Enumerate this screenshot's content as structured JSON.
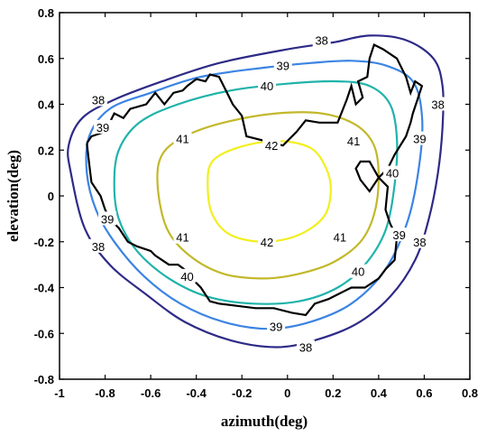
{
  "chart_data": {
    "type": "contour",
    "title": "",
    "xlabel": "azimuth(deg)",
    "ylabel": "elevation(deg)",
    "xlim": [
      -1,
      0.8
    ],
    "ylim": [
      -0.8,
      0.8
    ],
    "xticks": [
      "-1",
      "-0.8",
      "-0.6",
      "-0.4",
      "-0.2",
      "0",
      "0.2",
      "0.4",
      "0.6",
      "0.8"
    ],
    "yticks": [
      "0.8",
      "0.6",
      "0.4",
      "0.2",
      "0",
      "-0.2",
      "-0.4",
      "-0.6",
      "-0.8"
    ],
    "grid": false,
    "contours": [
      {
        "level": "38",
        "color": "#2e2a87",
        "points": [
          [
            -0.95,
            0.1
          ],
          [
            -0.96,
            0.22
          ],
          [
            -0.9,
            0.34
          ],
          [
            -0.76,
            0.42
          ],
          [
            -0.55,
            0.5
          ],
          [
            -0.3,
            0.58
          ],
          [
            0.0,
            0.64
          ],
          [
            0.2,
            0.67
          ],
          [
            0.36,
            0.7
          ],
          [
            0.52,
            0.68
          ],
          [
            0.64,
            0.6
          ],
          [
            0.68,
            0.48
          ],
          [
            0.68,
            0.3
          ],
          [
            0.66,
            0.1
          ],
          [
            0.62,
            -0.1
          ],
          [
            0.56,
            -0.28
          ],
          [
            0.45,
            -0.44
          ],
          [
            0.3,
            -0.56
          ],
          [
            0.12,
            -0.63
          ],
          [
            -0.05,
            -0.66
          ],
          [
            -0.25,
            -0.63
          ],
          [
            -0.45,
            -0.55
          ],
          [
            -0.62,
            -0.43
          ],
          [
            -0.78,
            -0.3
          ],
          [
            -0.89,
            -0.14
          ],
          [
            -0.95,
            0.1
          ]
        ],
        "labels": [
          {
            "x": 0.15,
            "y": 0.68
          },
          {
            "x": 0.66,
            "y": 0.4
          },
          {
            "x": 0.58,
            "y": -0.2
          },
          {
            "x": 0.08,
            "y": -0.66
          },
          {
            "x": -0.83,
            "y": -0.22
          },
          {
            "x": -0.83,
            "y": 0.42
          }
        ]
      },
      {
        "level": "39",
        "color": "#3b84e3",
        "points": [
          [
            -0.88,
            0.1
          ],
          [
            -0.87,
            0.26
          ],
          [
            -0.78,
            0.38
          ],
          [
            -0.6,
            0.45
          ],
          [
            -0.38,
            0.52
          ],
          [
            -0.1,
            0.56
          ],
          [
            0.1,
            0.58
          ],
          [
            0.28,
            0.59
          ],
          [
            0.43,
            0.57
          ],
          [
            0.55,
            0.5
          ],
          [
            0.59,
            0.35
          ],
          [
            0.58,
            0.15
          ],
          [
            0.53,
            -0.1
          ],
          [
            0.43,
            -0.32
          ],
          [
            0.28,
            -0.47
          ],
          [
            0.1,
            -0.55
          ],
          [
            -0.08,
            -0.58
          ],
          [
            -0.28,
            -0.55
          ],
          [
            -0.47,
            -0.47
          ],
          [
            -0.63,
            -0.35
          ],
          [
            -0.76,
            -0.2
          ],
          [
            -0.84,
            -0.06
          ],
          [
            -0.88,
            0.1
          ]
        ],
        "labels": [
          {
            "x": -0.02,
            "y": 0.57
          },
          {
            "x": 0.58,
            "y": 0.25
          },
          {
            "x": 0.49,
            "y": -0.17
          },
          {
            "x": -0.05,
            "y": -0.57
          },
          {
            "x": -0.79,
            "y": -0.1
          },
          {
            "x": -0.81,
            "y": 0.3
          }
        ]
      },
      {
        "level": "40",
        "color": "#20b3aa",
        "points": [
          [
            -0.76,
            0.05
          ],
          [
            -0.74,
            0.2
          ],
          [
            -0.65,
            0.32
          ],
          [
            -0.48,
            0.4
          ],
          [
            -0.25,
            0.46
          ],
          [
            0.0,
            0.49
          ],
          [
            0.22,
            0.5
          ],
          [
            0.36,
            0.48
          ],
          [
            0.45,
            0.4
          ],
          [
            0.48,
            0.25
          ],
          [
            0.47,
            0.05
          ],
          [
            0.43,
            -0.15
          ],
          [
            0.34,
            -0.3
          ],
          [
            0.22,
            -0.4
          ],
          [
            0.05,
            -0.46
          ],
          [
            -0.15,
            -0.47
          ],
          [
            -0.35,
            -0.44
          ],
          [
            -0.52,
            -0.36
          ],
          [
            -0.66,
            -0.24
          ],
          [
            -0.74,
            -0.1
          ],
          [
            -0.76,
            0.05
          ]
        ],
        "labels": [
          {
            "x": -0.09,
            "y": 0.48
          },
          {
            "x": 0.46,
            "y": 0.1
          },
          {
            "x": 0.31,
            "y": -0.33
          },
          {
            "x": -0.44,
            "y": -0.35
          }
        ]
      },
      {
        "level": "41",
        "color": "#c2b82a",
        "points": [
          [
            -0.57,
            0.05
          ],
          [
            -0.55,
            0.18
          ],
          [
            -0.45,
            0.26
          ],
          [
            -0.28,
            0.32
          ],
          [
            -0.05,
            0.36
          ],
          [
            0.15,
            0.36
          ],
          [
            0.3,
            0.31
          ],
          [
            0.38,
            0.22
          ],
          [
            0.4,
            0.08
          ],
          [
            0.38,
            -0.08
          ],
          [
            0.32,
            -0.2
          ],
          [
            0.2,
            -0.29
          ],
          [
            0.05,
            -0.34
          ],
          [
            -0.1,
            -0.36
          ],
          [
            -0.28,
            -0.34
          ],
          [
            -0.43,
            -0.26
          ],
          [
            -0.53,
            -0.14
          ],
          [
            -0.57,
            0.05
          ]
        ],
        "labels": [
          {
            "x": -0.46,
            "y": 0.25
          },
          {
            "x": 0.29,
            "y": 0.24
          },
          {
            "x": 0.23,
            "y": -0.18
          },
          {
            "x": -0.46,
            "y": -0.18
          }
        ]
      },
      {
        "level": "42",
        "color": "#f2ef1f",
        "points": [
          [
            -0.35,
            0.05
          ],
          [
            -0.33,
            0.15
          ],
          [
            -0.22,
            0.21
          ],
          [
            -0.05,
            0.24
          ],
          [
            0.1,
            0.21
          ],
          [
            0.17,
            0.12
          ],
          [
            0.19,
            0.02
          ],
          [
            0.16,
            -0.09
          ],
          [
            0.05,
            -0.17
          ],
          [
            -0.1,
            -0.2
          ],
          [
            -0.25,
            -0.17
          ],
          [
            -0.33,
            -0.08
          ],
          [
            -0.35,
            0.05
          ]
        ],
        "labels": [
          {
            "x": -0.07,
            "y": 0.22
          },
          {
            "x": -0.09,
            "y": -0.2
          }
        ]
      }
    ],
    "boundary": {
      "color": "#000000",
      "points": [
        [
          -0.88,
          0.23
        ],
        [
          -0.86,
          0.26
        ],
        [
          -0.8,
          0.28
        ],
        [
          -0.76,
          0.36
        ],
        [
          -0.72,
          0.34
        ],
        [
          -0.69,
          0.38
        ],
        [
          -0.62,
          0.4
        ],
        [
          -0.58,
          0.45
        ],
        [
          -0.54,
          0.4
        ],
        [
          -0.5,
          0.45
        ],
        [
          -0.46,
          0.46
        ],
        [
          -0.44,
          0.48
        ],
        [
          -0.4,
          0.51
        ],
        [
          -0.36,
          0.5
        ],
        [
          -0.34,
          0.53
        ],
        [
          -0.3,
          0.52
        ],
        [
          -0.28,
          0.48
        ],
        [
          -0.24,
          0.4
        ],
        [
          -0.2,
          0.35
        ],
        [
          -0.18,
          0.26
        ],
        [
          -0.1,
          0.24
        ],
        [
          -0.02,
          0.22
        ],
        [
          0.04,
          0.28
        ],
        [
          0.08,
          0.33
        ],
        [
          0.14,
          0.32
        ],
        [
          0.22,
          0.32
        ],
        [
          0.26,
          0.42
        ],
        [
          0.28,
          0.48
        ],
        [
          0.3,
          0.4
        ],
        [
          0.33,
          0.43
        ],
        [
          0.31,
          0.5
        ],
        [
          0.35,
          0.52
        ],
        [
          0.36,
          0.6
        ],
        [
          0.38,
          0.66
        ],
        [
          0.42,
          0.64
        ],
        [
          0.48,
          0.6
        ],
        [
          0.52,
          0.52
        ],
        [
          0.54,
          0.45
        ],
        [
          0.56,
          0.5
        ],
        [
          0.59,
          0.48
        ],
        [
          0.57,
          0.42
        ],
        [
          0.55,
          0.36
        ],
        [
          0.54,
          0.32
        ],
        [
          0.52,
          0.26
        ],
        [
          0.47,
          0.18
        ],
        [
          0.44,
          0.12
        ],
        [
          0.4,
          0.08
        ],
        [
          0.36,
          0.02
        ],
        [
          0.32,
          0.07
        ],
        [
          0.3,
          0.12
        ],
        [
          0.32,
          0.15
        ],
        [
          0.36,
          0.15
        ],
        [
          0.4,
          0.08
        ],
        [
          0.44,
          0.04
        ],
        [
          0.43,
          -0.06
        ],
        [
          0.45,
          -0.12
        ],
        [
          0.48,
          -0.18
        ],
        [
          0.47,
          -0.28
        ],
        [
          0.43,
          -0.32
        ],
        [
          0.4,
          -0.36
        ],
        [
          0.34,
          -0.4
        ],
        [
          0.28,
          -0.4
        ],
        [
          0.22,
          -0.43
        ],
        [
          0.18,
          -0.45
        ],
        [
          0.12,
          -0.47
        ],
        [
          0.08,
          -0.52
        ],
        [
          0.02,
          -0.51
        ],
        [
          -0.06,
          -0.49
        ],
        [
          -0.14,
          -0.49
        ],
        [
          -0.22,
          -0.48
        ],
        [
          -0.3,
          -0.47
        ],
        [
          -0.34,
          -0.46
        ],
        [
          -0.38,
          -0.4
        ],
        [
          -0.4,
          -0.38
        ],
        [
          -0.44,
          -0.33
        ],
        [
          -0.48,
          -0.3
        ],
        [
          -0.52,
          -0.3
        ],
        [
          -0.58,
          -0.26
        ],
        [
          -0.6,
          -0.24
        ],
        [
          -0.66,
          -0.22
        ],
        [
          -0.7,
          -0.2
        ],
        [
          -0.74,
          -0.14
        ],
        [
          -0.78,
          -0.1
        ],
        [
          -0.8,
          -0.06
        ],
        [
          -0.82,
          0.0
        ],
        [
          -0.86,
          0.06
        ],
        [
          -0.87,
          0.14
        ],
        [
          -0.88,
          0.23
        ]
      ]
    }
  }
}
